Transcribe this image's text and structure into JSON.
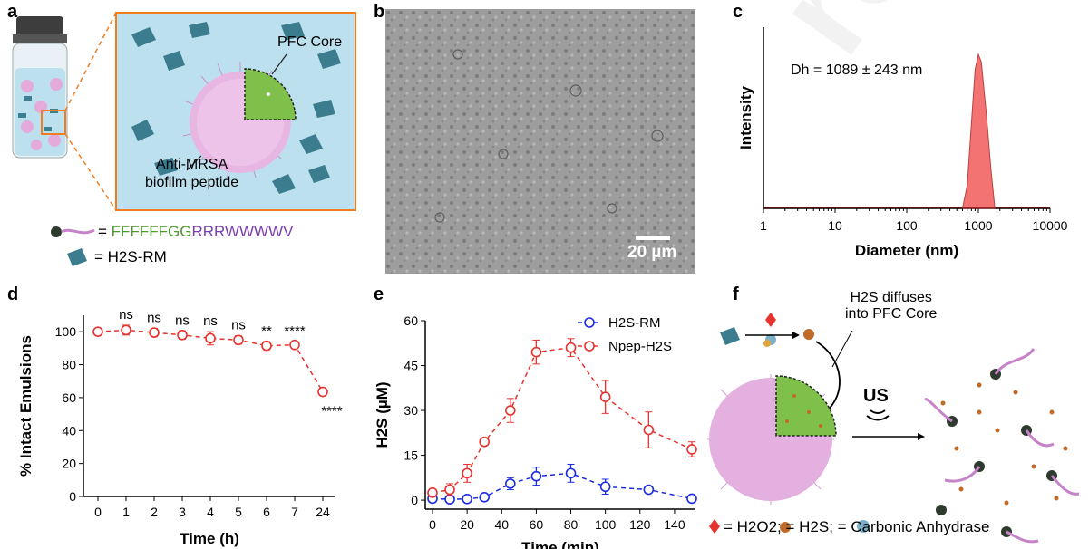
{
  "panels": {
    "a": "a",
    "b": "b",
    "c": "c",
    "d": "d",
    "e": "e",
    "f": "f"
  },
  "panel_a": {
    "pfc_core": "PFC Core",
    "anti_mrsa_line1": "Anti-MRSA",
    "anti_mrsa_line2": "biofilm peptide",
    "peptide_eq": "=",
    "peptide_green": "FFFFFFGG",
    "peptide_purple": "RRRWWWWV",
    "h2srm": "= H2S-RM"
  },
  "panel_b": {
    "scalebar": "20 µm"
  },
  "chart_c": {
    "type": "area",
    "title": "",
    "annotation": "Dh = 1089 ± 243 nm",
    "xlabel": "Diameter (nm)",
    "ylabel": "Intensity",
    "xscale": "log",
    "xlim": [
      1,
      10000
    ],
    "xticks": [
      "1",
      "10",
      "100",
      "1000",
      "10000"
    ],
    "x": [
      600,
      700,
      800,
      900,
      1000,
      1100,
      1300,
      1500,
      1700
    ],
    "y": [
      0,
      0.15,
      0.55,
      0.9,
      1.0,
      0.95,
      0.6,
      0.25,
      0
    ],
    "color": "#f25a5a"
  },
  "chart_d": {
    "type": "line",
    "xlabel": "Time (h)",
    "ylabel": "% Intact Emulsions",
    "categories": [
      "0",
      "1",
      "2",
      "3",
      "4",
      "5",
      "6",
      "7",
      "24"
    ],
    "values": [
      100,
      101,
      99.5,
      98,
      96,
      95,
      91.5,
      92,
      63.5
    ],
    "errors": [
      0,
      3,
      2.5,
      2.5,
      4,
      2.5,
      2.5,
      2,
      0
    ],
    "ylim": [
      0,
      110
    ],
    "yticks": [
      "0",
      "20",
      "40",
      "60",
      "80",
      "100"
    ],
    "sig": [
      "",
      "ns",
      "ns",
      "ns",
      "ns",
      "ns",
      "**",
      "****",
      "****"
    ],
    "color": "#e8322e"
  },
  "chart_e": {
    "type": "line",
    "xlabel": "Time (min)",
    "ylabel": "H2S (µM)",
    "xlim": [
      0,
      150
    ],
    "ylim": [
      -3,
      60
    ],
    "xticks": [
      "0",
      "20",
      "40",
      "60",
      "80",
      "100",
      "120",
      "140"
    ],
    "yticks": [
      "0",
      "15",
      "30",
      "45",
      "60"
    ],
    "series": [
      {
        "name": "H2S-RM",
        "color": "#1a2be0",
        "x": [
          0,
          10,
          20,
          30,
          45,
          60,
          80,
          100,
          125,
          150
        ],
        "values": [
          0.5,
          0.3,
          0.4,
          1,
          5.5,
          8,
          9,
          4.5,
          3.5,
          0.5
        ],
        "errors": [
          0,
          0,
          0,
          0,
          2,
          3,
          3,
          2.5,
          0,
          0
        ]
      },
      {
        "name": "Npep-H2S",
        "color": "#e8322e",
        "x": [
          0,
          10,
          20,
          30,
          45,
          60,
          80,
          100,
          125,
          150
        ],
        "values": [
          2.5,
          3.5,
          9,
          19.5,
          30,
          49.5,
          51,
          34.5,
          23.5,
          17
        ],
        "errors": [
          0,
          2,
          3,
          0,
          4,
          4,
          3,
          5.5,
          6,
          2.5
        ]
      }
    ]
  },
  "panel_f": {
    "diffuses_line1": "H2S diffuses",
    "diffuses_line2": "into PFC Core",
    "us": "US",
    "legend": "= H2O2;  = H2S;  = Carbonic Anhydrase"
  }
}
